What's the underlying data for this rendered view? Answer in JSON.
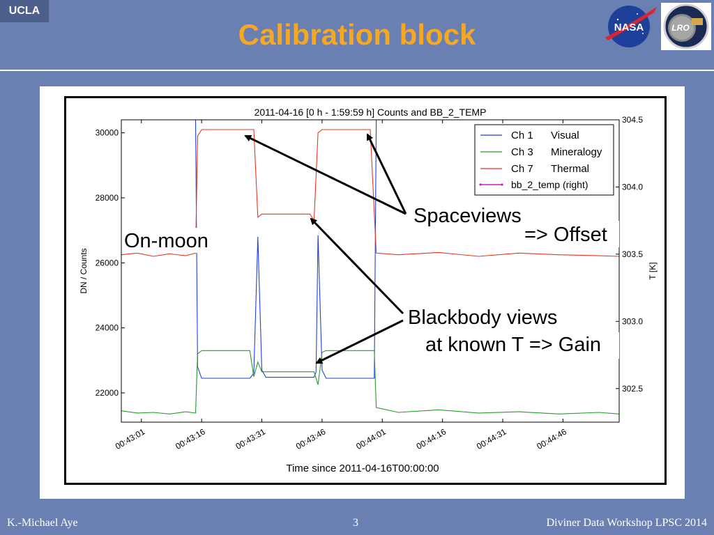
{
  "slide": {
    "badge": "UCLA",
    "title": "Calibration block",
    "logo_nasa_text": "NASA",
    "logo_lro_text": "LRO",
    "footer_left": "K.-Michael Aye",
    "footer_page": "3",
    "footer_right": "Diviner Data Workshop LPSC 2014"
  },
  "annotations": {
    "on_moon": "On-moon",
    "spaceviews": "Spaceviews",
    "offset": "=> Offset",
    "bb_line1": "Blackbody views",
    "bb_line2": "at known T => Gain"
  },
  "chart_data": {
    "type": "line",
    "title": "2011-04-16 [0 h - 1:59:59 h] Counts and BB_2_TEMP",
    "xlabel": "Time since 2011-04-16T00:00:00",
    "ylabel": "DN / Counts",
    "y2label": "T [K]",
    "xlim": [
      "00:42:56",
      "00:45:00"
    ],
    "ylim": [
      21100,
      30400
    ],
    "y2lim": [
      302.25,
      304.5
    ],
    "x_ticks": [
      "00:43:01",
      "00:43:16",
      "00:43:31",
      "00:43:46",
      "00:44:01",
      "00:44:16",
      "00:44:31",
      "00:44:46"
    ],
    "y_ticks": [
      22000,
      24000,
      26000,
      28000,
      30000
    ],
    "y2_ticks": [
      "302.5",
      "303.0",
      "303.5",
      "304.0",
      "304.5"
    ],
    "legend_position": "top-right",
    "grid": false,
    "series": [
      {
        "name": "Ch 1",
        "desc": "Visual",
        "color": "#1f3fdf",
        "points": [
          [
            "00:42:56",
            30400
          ],
          [
            "00:43:14.5",
            30400
          ],
          [
            "00:43:15",
            22800
          ],
          [
            "00:43:16",
            22450
          ],
          [
            "00:43:28",
            22450
          ],
          [
            "00:43:29",
            22600
          ],
          [
            "00:43:30",
            26800
          ],
          [
            "00:43:31",
            22700
          ],
          [
            "00:43:32",
            22480
          ],
          [
            "00:43:44",
            22480
          ],
          [
            "00:43:44.5",
            22650
          ],
          [
            "00:43:45",
            26850
          ],
          [
            "00:43:46",
            22700
          ],
          [
            "00:43:47",
            22450
          ],
          [
            "00:43:59",
            22450
          ],
          [
            "00:43:59.5",
            30400
          ],
          [
            "00:45:00",
            30400
          ]
        ]
      },
      {
        "name": "Ch 3",
        "desc": "Mineralogy",
        "color": "#2a9a2a",
        "points": [
          [
            "00:42:56",
            21450
          ],
          [
            "00:43:00",
            21380
          ],
          [
            "00:43:04",
            21400
          ],
          [
            "00:43:08",
            21350
          ],
          [
            "00:43:12",
            21420
          ],
          [
            "00:43:14.5",
            21380
          ],
          [
            "00:43:15",
            23200
          ],
          [
            "00:43:16",
            23300
          ],
          [
            "00:43:28",
            23300
          ],
          [
            "00:43:29",
            22500
          ],
          [
            "00:43:30",
            22950
          ],
          [
            "00:43:31",
            22650
          ],
          [
            "00:43:44",
            22650
          ],
          [
            "00:43:45",
            22250
          ],
          [
            "00:43:46",
            23250
          ],
          [
            "00:43:47",
            23300
          ],
          [
            "00:43:59",
            23300
          ],
          [
            "00:43:59.5",
            21550
          ],
          [
            "00:44:05",
            21400
          ],
          [
            "00:44:15",
            21480
          ],
          [
            "00:44:25",
            21380
          ],
          [
            "00:44:35",
            21420
          ],
          [
            "00:44:45",
            21350
          ],
          [
            "00:44:55",
            21400
          ],
          [
            "00:45:00",
            21350
          ]
        ]
      },
      {
        "name": "Ch 7",
        "desc": "Thermal",
        "color": "#e8351f",
        "points": [
          [
            "00:42:56",
            26250
          ],
          [
            "00:43:00",
            26300
          ],
          [
            "00:43:04",
            26200
          ],
          [
            "00:43:08",
            26280
          ],
          [
            "00:43:12",
            26220
          ],
          [
            "00:43:14.5",
            26300
          ],
          [
            "00:43:15",
            29900
          ],
          [
            "00:43:16",
            30100
          ],
          [
            "00:43:29",
            30100
          ],
          [
            "00:43:30",
            27400
          ],
          [
            "00:43:31",
            27500
          ],
          [
            "00:43:43",
            27500
          ],
          [
            "00:43:44",
            27300
          ],
          [
            "00:43:45",
            30000
          ],
          [
            "00:43:46",
            30100
          ],
          [
            "00:43:58",
            30100
          ],
          [
            "00:43:59.5",
            26300
          ],
          [
            "00:44:05",
            26250
          ],
          [
            "00:44:15",
            26320
          ],
          [
            "00:44:25",
            26200
          ],
          [
            "00:44:35",
            26300
          ],
          [
            "00:44:45",
            26250
          ],
          [
            "00:44:55",
            26220
          ],
          [
            "00:45:00",
            26200
          ]
        ]
      },
      {
        "name": "bb_2_temp (right)",
        "desc": "",
        "color": "#c020c0",
        "points": []
      }
    ]
  }
}
